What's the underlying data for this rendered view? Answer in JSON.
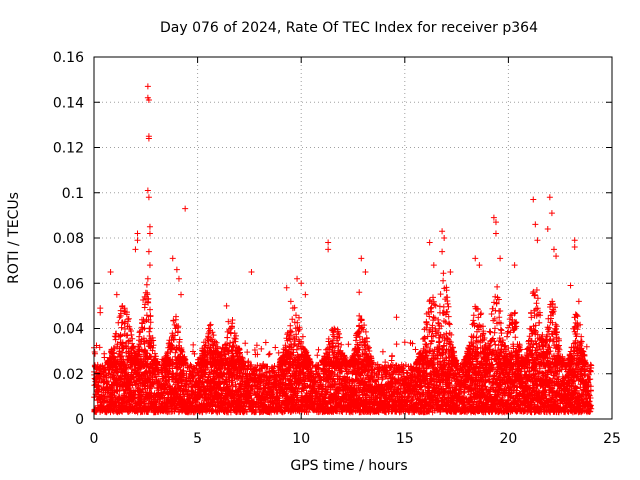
{
  "chart_data": {
    "type": "scatter",
    "title": "Day 076 of 2024, Rate Of TEC Index for receiver p364",
    "xlabel": "GPS time / hours",
    "ylabel": "ROTI / TECUs",
    "xlim": [
      0,
      25
    ],
    "ylim": [
      0,
      0.16
    ],
    "xticks": [
      0,
      5,
      10,
      15,
      20,
      25
    ],
    "xtick_labels": [
      "0",
      "5",
      "10",
      "15",
      "20",
      "25"
    ],
    "yticks": [
      0,
      0.02,
      0.04,
      0.06,
      0.08,
      0.1,
      0.12,
      0.14,
      0.16
    ],
    "ytick_labels": [
      "0",
      "0.02",
      "0.04",
      "0.06",
      "0.08",
      "0.1",
      "0.12",
      "0.14",
      "0.16"
    ],
    "grid": true,
    "marker": "+",
    "series": [
      {
        "name": "ROTI",
        "color": "#ff0000",
        "points": [
          [
            0.3,
            0.047
          ],
          [
            0.3,
            0.049
          ],
          [
            0.8,
            0.065
          ],
          [
            1.1,
            0.055
          ],
          [
            2.0,
            0.075
          ],
          [
            2.1,
            0.082
          ],
          [
            2.1,
            0.079
          ],
          [
            2.6,
            0.147
          ],
          [
            2.6,
            0.142
          ],
          [
            2.65,
            0.141
          ],
          [
            2.65,
            0.125
          ],
          [
            2.65,
            0.124
          ],
          [
            2.6,
            0.101
          ],
          [
            2.65,
            0.098
          ],
          [
            2.7,
            0.085
          ],
          [
            2.7,
            0.082
          ],
          [
            2.65,
            0.074
          ],
          [
            2.7,
            0.068
          ],
          [
            2.6,
            0.062
          ],
          [
            2.6,
            0.053
          ],
          [
            3.8,
            0.071
          ],
          [
            4.0,
            0.066
          ],
          [
            4.1,
            0.062
          ],
          [
            4.4,
            0.093
          ],
          [
            4.2,
            0.055
          ],
          [
            6.4,
            0.05
          ],
          [
            7.6,
            0.065
          ],
          [
            9.3,
            0.058
          ],
          [
            9.5,
            0.052
          ],
          [
            9.6,
            0.049
          ],
          [
            9.8,
            0.062
          ],
          [
            10.0,
            0.06
          ],
          [
            10.2,
            0.055
          ],
          [
            11.3,
            0.078
          ],
          [
            11.3,
            0.075
          ],
          [
            12.9,
            0.071
          ],
          [
            13.1,
            0.065
          ],
          [
            12.8,
            0.056
          ],
          [
            14.6,
            0.045
          ],
          [
            16.2,
            0.078
          ],
          [
            16.4,
            0.068
          ],
          [
            16.8,
            0.083
          ],
          [
            16.9,
            0.08
          ],
          [
            16.8,
            0.074
          ],
          [
            17.2,
            0.065
          ],
          [
            18.4,
            0.071
          ],
          [
            18.6,
            0.068
          ],
          [
            19.3,
            0.089
          ],
          [
            19.4,
            0.087
          ],
          [
            19.4,
            0.082
          ],
          [
            19.6,
            0.071
          ],
          [
            20.3,
            0.068
          ],
          [
            21.2,
            0.097
          ],
          [
            21.3,
            0.086
          ],
          [
            21.4,
            0.079
          ],
          [
            22.0,
            0.098
          ],
          [
            22.1,
            0.091
          ],
          [
            21.9,
            0.084
          ],
          [
            22.2,
            0.075
          ],
          [
            22.3,
            0.072
          ],
          [
            23.2,
            0.079
          ],
          [
            23.2,
            0.076
          ],
          [
            23.0,
            0.059
          ],
          [
            23.4,
            0.052
          ]
        ],
        "dense_envelope": {
          "x_range": [
            0,
            24
          ],
          "base_range": [
            0.003,
            0.024
          ],
          "cluster_peaks": [
            {
              "center": 1.4,
              "width": 0.7,
              "peak": 0.053
            },
            {
              "center": 2.5,
              "width": 0.5,
              "peak": 0.06
            },
            {
              "center": 3.9,
              "width": 0.5,
              "peak": 0.047
            },
            {
              "center": 5.6,
              "width": 0.6,
              "peak": 0.042
            },
            {
              "center": 6.6,
              "width": 0.6,
              "peak": 0.045
            },
            {
              "center": 9.7,
              "width": 0.7,
              "peak": 0.05
            },
            {
              "center": 11.6,
              "width": 0.6,
              "peak": 0.042
            },
            {
              "center": 12.9,
              "width": 0.5,
              "peak": 0.048
            },
            {
              "center": 16.3,
              "width": 0.7,
              "peak": 0.055
            },
            {
              "center": 16.9,
              "width": 0.5,
              "peak": 0.066
            },
            {
              "center": 18.5,
              "width": 0.6,
              "peak": 0.052
            },
            {
              "center": 19.4,
              "width": 0.5,
              "peak": 0.06
            },
            {
              "center": 20.2,
              "width": 0.5,
              "peak": 0.05
            },
            {
              "center": 21.3,
              "width": 0.5,
              "peak": 0.06
            },
            {
              "center": 22.1,
              "width": 0.5,
              "peak": 0.055
            },
            {
              "center": 23.3,
              "width": 0.4,
              "peak": 0.05
            }
          ]
        }
      }
    ]
  }
}
